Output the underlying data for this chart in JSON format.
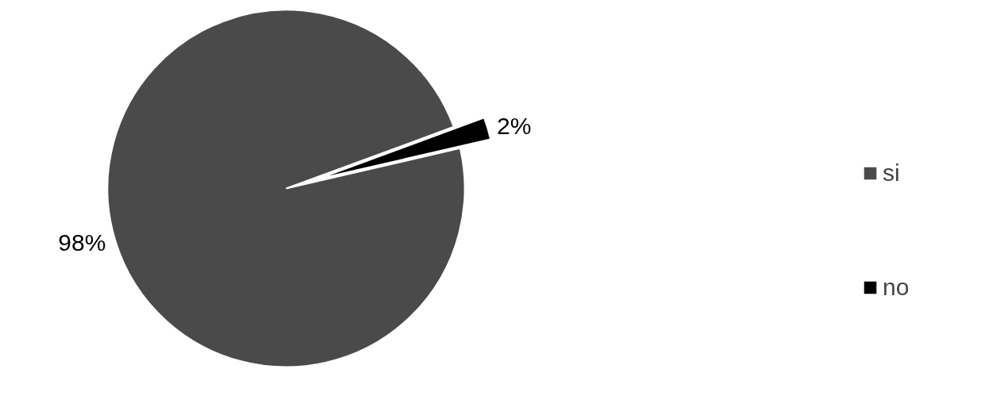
{
  "chart_data": {
    "type": "pie",
    "categories": [
      "si",
      "no"
    ],
    "values": [
      98,
      2
    ],
    "colors": [
      "#4a4a4a",
      "#000000"
    ],
    "value_labels": [
      "98%",
      "2%"
    ],
    "legend": "right"
  }
}
